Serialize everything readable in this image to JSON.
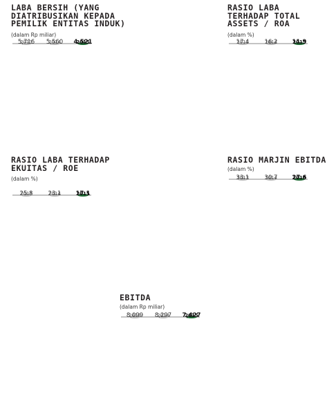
{
  "colors": {
    "past_bar": "#999999",
    "current_bar": "#0d4a1f",
    "axis": "#888888"
  },
  "chart_data": [
    {
      "type": "bar",
      "title": "LABA BERSIH (YANG\nDIATRIBUSIKAN KEPADA\nPEMILIK ENTITAS INDUK)",
      "unit": "(dalam Rp miliar)",
      "categories": [
        "2013",
        "2014",
        "2015"
      ],
      "values": [
        5716,
        5560,
        4521
      ],
      "value_labels": [
        "5,716",
        "5,560",
        "4.521"
      ],
      "highlight_index": 2
    },
    {
      "type": "bar",
      "title": "RASIO LABA\nTERHADAP TOTAL\nASSETS / ROA",
      "unit": "(dalam %)",
      "categories": [
        "2013",
        "2014",
        "2015"
      ],
      "values": [
        17.4,
        16.2,
        11.9
      ],
      "value_labels": [
        "17.4",
        "16.2",
        "11.9"
      ],
      "highlight_index": 2
    },
    {
      "type": "bar",
      "title": "RASIO LABA TERHADAP\nEKUITAS / ROE",
      "unit": "(dalam %)",
      "categories": [
        "2013",
        "2014",
        "2015"
      ],
      "values": [
        25.8,
        23.1,
        17.1
      ],
      "value_labels": [
        "25.8",
        "23.1",
        "17.1"
      ],
      "highlight_index": 2
    },
    {
      "type": "bar",
      "title": "RASIO MARJIN EBITDA",
      "unit": "(dalam %)",
      "categories": [
        "2013",
        "2014",
        "2015"
      ],
      "values": [
        33.1,
        30.7,
        27.6
      ],
      "value_labels": [
        "33.1",
        "30.7",
        "27.6"
      ],
      "highlight_index": 2
    },
    {
      "type": "bar",
      "title": "EBITDA",
      "unit": "(dalam Rp miliar)",
      "categories": [
        "2013",
        "2014",
        "2015"
      ],
      "values": [
        8099,
        8297,
        7427
      ],
      "value_labels": [
        "8,099",
        "8,297",
        "7,427"
      ],
      "highlight_index": 2
    }
  ]
}
